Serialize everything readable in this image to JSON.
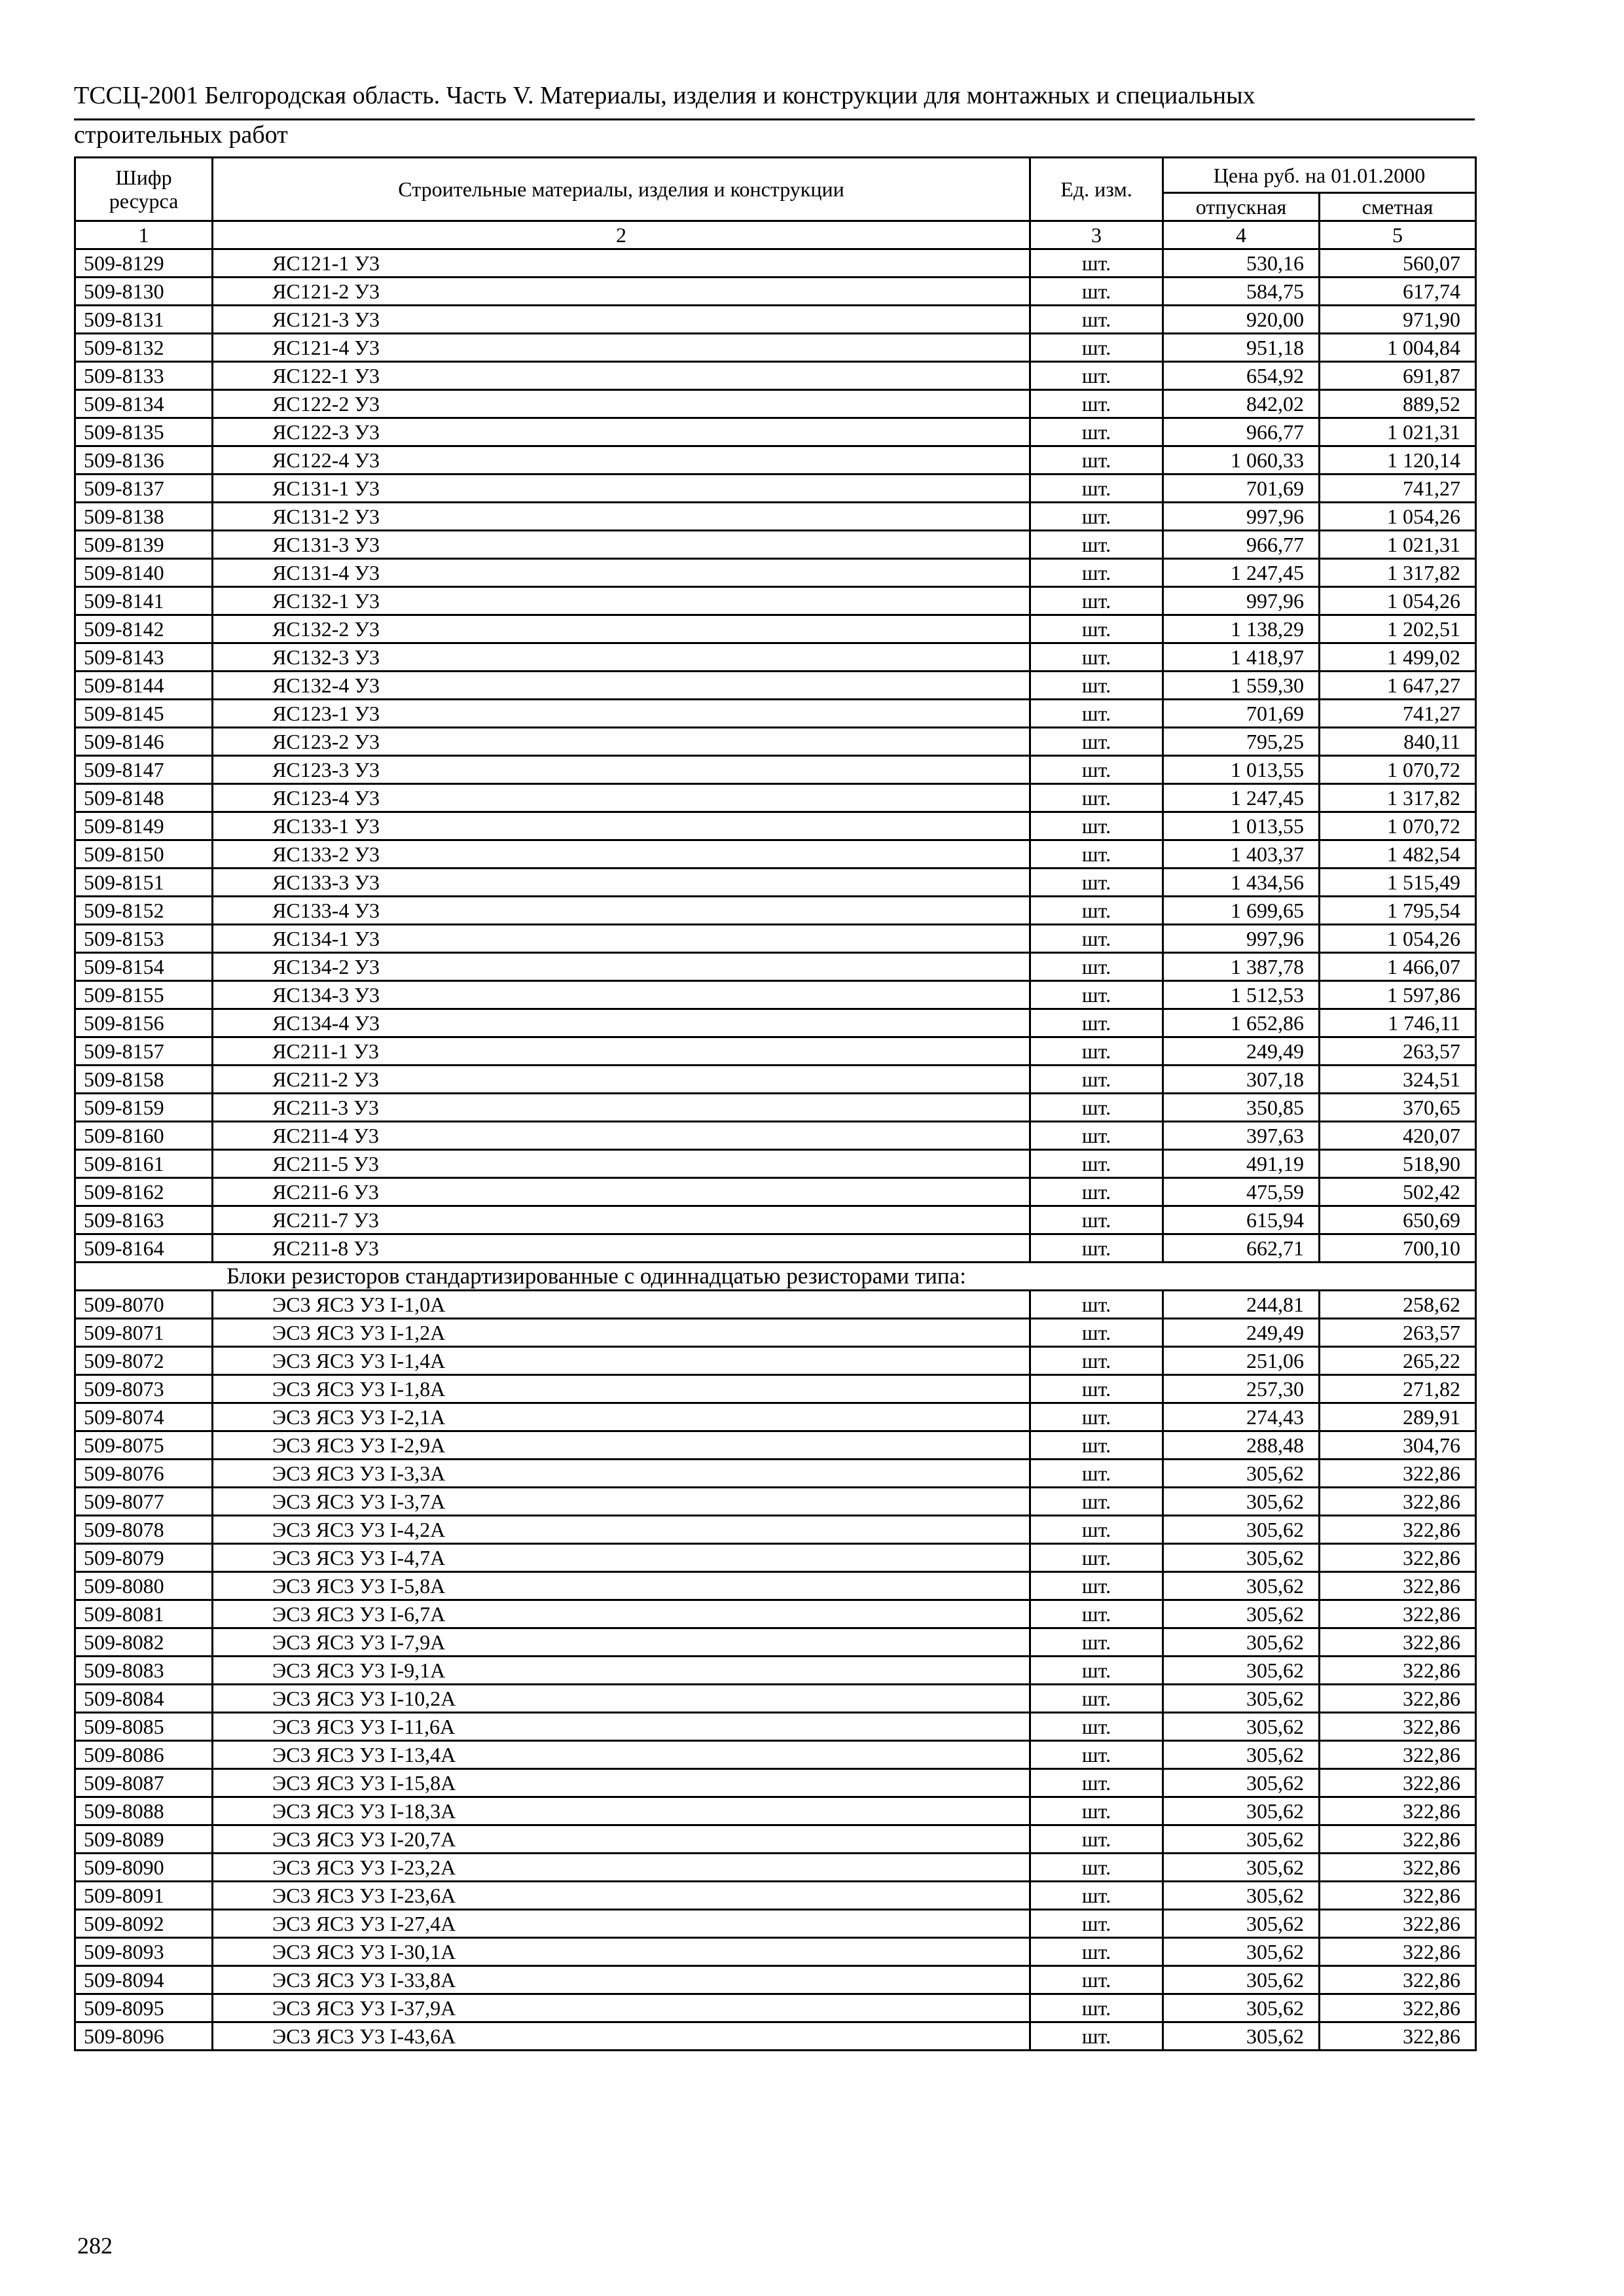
{
  "header": {
    "title_line1": "ТССЦ-2001 Белгородская область. Часть V. Материалы, изделия и конструкции для монтажных и специальных",
    "title_line2": "строительных работ"
  },
  "table": {
    "columns": {
      "code": "Шифр ресурса",
      "name": "Строительные материалы, изделия и конструкции",
      "unit": "Ед. изм.",
      "price_group": "Цена руб. на 01.01.2000",
      "release": "отпускная",
      "estimate": "сметная"
    },
    "column_numbers": [
      "1",
      "2",
      "3",
      "4",
      "5"
    ],
    "sections": [
      {
        "heading": "",
        "rows": [
          [
            "509-8129",
            "ЯС121-1 У3",
            "шт.",
            "530,16",
            "560,07"
          ],
          [
            "509-8130",
            "ЯС121-2 У3",
            "шт.",
            "584,75",
            "617,74"
          ],
          [
            "509-8131",
            "ЯС121-3 У3",
            "шт.",
            "920,00",
            "971,90"
          ],
          [
            "509-8132",
            "ЯС121-4 У3",
            "шт.",
            "951,18",
            "1 004,84"
          ],
          [
            "509-8133",
            "ЯС122-1 У3",
            "шт.",
            "654,92",
            "691,87"
          ],
          [
            "509-8134",
            "ЯС122-2 У3",
            "шт.",
            "842,02",
            "889,52"
          ],
          [
            "509-8135",
            "ЯС122-3 У3",
            "шт.",
            "966,77",
            "1 021,31"
          ],
          [
            "509-8136",
            "ЯС122-4 У3",
            "шт.",
            "1 060,33",
            "1 120,14"
          ],
          [
            "509-8137",
            "ЯС131-1 У3",
            "шт.",
            "701,69",
            "741,27"
          ],
          [
            "509-8138",
            "ЯС131-2 У3",
            "шт.",
            "997,96",
            "1 054,26"
          ],
          [
            "509-8139",
            "ЯС131-3 У3",
            "шт.",
            "966,77",
            "1 021,31"
          ],
          [
            "509-8140",
            "ЯС131-4 У3",
            "шт.",
            "1 247,45",
            "1 317,82"
          ],
          [
            "509-8141",
            "ЯС132-1 У3",
            "шт.",
            "997,96",
            "1 054,26"
          ],
          [
            "509-8142",
            "ЯС132-2 У3",
            "шт.",
            "1 138,29",
            "1 202,51"
          ],
          [
            "509-8143",
            "ЯС132-3 У3",
            "шт.",
            "1 418,97",
            "1 499,02"
          ],
          [
            "509-8144",
            "ЯС132-4 У3",
            "шт.",
            "1 559,30",
            "1 647,27"
          ],
          [
            "509-8145",
            "ЯС123-1 У3",
            "шт.",
            "701,69",
            "741,27"
          ],
          [
            "509-8146",
            "ЯС123-2 У3",
            "шт.",
            "795,25",
            "840,11"
          ],
          [
            "509-8147",
            "ЯС123-3 У3",
            "шт.",
            "1 013,55",
            "1 070,72"
          ],
          [
            "509-8148",
            "ЯС123-4 У3",
            "шт.",
            "1 247,45",
            "1 317,82"
          ],
          [
            "509-8149",
            "ЯС133-1 У3",
            "шт.",
            "1 013,55",
            "1 070,72"
          ],
          [
            "509-8150",
            "ЯС133-2 У3",
            "шт.",
            "1 403,37",
            "1 482,54"
          ],
          [
            "509-8151",
            "ЯС133-3 У3",
            "шт.",
            "1 434,56",
            "1 515,49"
          ],
          [
            "509-8152",
            "ЯС133-4 У3",
            "шт.",
            "1 699,65",
            "1 795,54"
          ],
          [
            "509-8153",
            "ЯС134-1 У3",
            "шт.",
            "997,96",
            "1 054,26"
          ],
          [
            "509-8154",
            "ЯС134-2 У3",
            "шт.",
            "1 387,78",
            "1 466,07"
          ],
          [
            "509-8155",
            "ЯС134-3 У3",
            "шт.",
            "1 512,53",
            "1 597,86"
          ],
          [
            "509-8156",
            "ЯС134-4 У3",
            "шт.",
            "1 652,86",
            "1 746,11"
          ],
          [
            "509-8157",
            "ЯС211-1 У3",
            "шт.",
            "249,49",
            "263,57"
          ],
          [
            "509-8158",
            "ЯС211-2 У3",
            "шт.",
            "307,18",
            "324,51"
          ],
          [
            "509-8159",
            "ЯС211-3 У3",
            "шт.",
            "350,85",
            "370,65"
          ],
          [
            "509-8160",
            "ЯС211-4 У3",
            "шт.",
            "397,63",
            "420,07"
          ],
          [
            "509-8161",
            "ЯС211-5 У3",
            "шт.",
            "491,19",
            "518,90"
          ],
          [
            "509-8162",
            "ЯС211-6 У3",
            "шт.",
            "475,59",
            "502,42"
          ],
          [
            "509-8163",
            "ЯС211-7 У3",
            "шт.",
            "615,94",
            "650,69"
          ],
          [
            "509-8164",
            "ЯС211-8 У3",
            "шт.",
            "662,71",
            "700,10"
          ]
        ]
      },
      {
        "heading": "Блоки резисторов стандартизированные с одиннадцатью резисторами типа:",
        "rows": [
          [
            "509-8070",
            "ЭС3 ЯС3 У3 I-1,0А",
            "шт.",
            "244,81",
            "258,62"
          ],
          [
            "509-8071",
            "ЭС3 ЯС3 У3 I-1,2А",
            "шт.",
            "249,49",
            "263,57"
          ],
          [
            "509-8072",
            "ЭС3 ЯС3 У3 I-1,4А",
            "шт.",
            "251,06",
            "265,22"
          ],
          [
            "509-8073",
            "ЭС3 ЯС3 У3 I-1,8А",
            "шт.",
            "257,30",
            "271,82"
          ],
          [
            "509-8074",
            "ЭС3 ЯС3 У3 I-2,1А",
            "шт.",
            "274,43",
            "289,91"
          ],
          [
            "509-8075",
            "ЭС3 ЯС3 У3 I-2,9А",
            "шт.",
            "288,48",
            "304,76"
          ],
          [
            "509-8076",
            "ЭС3 ЯС3 У3 I-3,3А",
            "шт.",
            "305,62",
            "322,86"
          ],
          [
            "509-8077",
            "ЭС3 ЯС3 У3 I-3,7А",
            "шт.",
            "305,62",
            "322,86"
          ],
          [
            "509-8078",
            "ЭС3 ЯС3 У3 I-4,2А",
            "шт.",
            "305,62",
            "322,86"
          ],
          [
            "509-8079",
            "ЭС3 ЯС3 У3 I-4,7А",
            "шт.",
            "305,62",
            "322,86"
          ],
          [
            "509-8080",
            "ЭС3 ЯС3 У3 I-5,8А",
            "шт.",
            "305,62",
            "322,86"
          ],
          [
            "509-8081",
            "ЭС3 ЯС3 У3 I-6,7А",
            "шт.",
            "305,62",
            "322,86"
          ],
          [
            "509-8082",
            "ЭС3 ЯС3 У3 I-7,9А",
            "шт.",
            "305,62",
            "322,86"
          ],
          [
            "509-8083",
            "ЭС3 ЯС3 У3 I-9,1А",
            "шт.",
            "305,62",
            "322,86"
          ],
          [
            "509-8084",
            "ЭС3 ЯС3 У3 I-10,2А",
            "шт.",
            "305,62",
            "322,86"
          ],
          [
            "509-8085",
            "ЭС3 ЯС3 У3 I-11,6А",
            "шт.",
            "305,62",
            "322,86"
          ],
          [
            "509-8086",
            "ЭС3 ЯС3 У3 I-13,4А",
            "шт.",
            "305,62",
            "322,86"
          ],
          [
            "509-8087",
            "ЭС3 ЯС3 У3 I-15,8А",
            "шт.",
            "305,62",
            "322,86"
          ],
          [
            "509-8088",
            "ЭС3 ЯС3 У3 I-18,3А",
            "шт.",
            "305,62",
            "322,86"
          ],
          [
            "509-8089",
            "ЭС3 ЯС3 У3 I-20,7А",
            "шт.",
            "305,62",
            "322,86"
          ],
          [
            "509-8090",
            "ЭС3 ЯС3 У3 I-23,2А",
            "шт.",
            "305,62",
            "322,86"
          ],
          [
            "509-8091",
            "ЭС3 ЯС3 У3 I-23,6А",
            "шт.",
            "305,62",
            "322,86"
          ],
          [
            "509-8092",
            "ЭС3 ЯС3 У3 I-27,4А",
            "шт.",
            "305,62",
            "322,86"
          ],
          [
            "509-8093",
            "ЭС3 ЯС3 У3 I-30,1А",
            "шт.",
            "305,62",
            "322,86"
          ],
          [
            "509-8094",
            "ЭС3 ЯС3 У3 I-33,8А",
            "шт.",
            "305,62",
            "322,86"
          ],
          [
            "509-8095",
            "ЭС3 ЯС3 У3 I-37,9А",
            "шт.",
            "305,62",
            "322,86"
          ],
          [
            "509-8096",
            "ЭС3 ЯС3 У3 I-43,6А",
            "шт.",
            "305,62",
            "322,86"
          ]
        ]
      }
    ]
  },
  "footer": {
    "page_number": "282"
  }
}
